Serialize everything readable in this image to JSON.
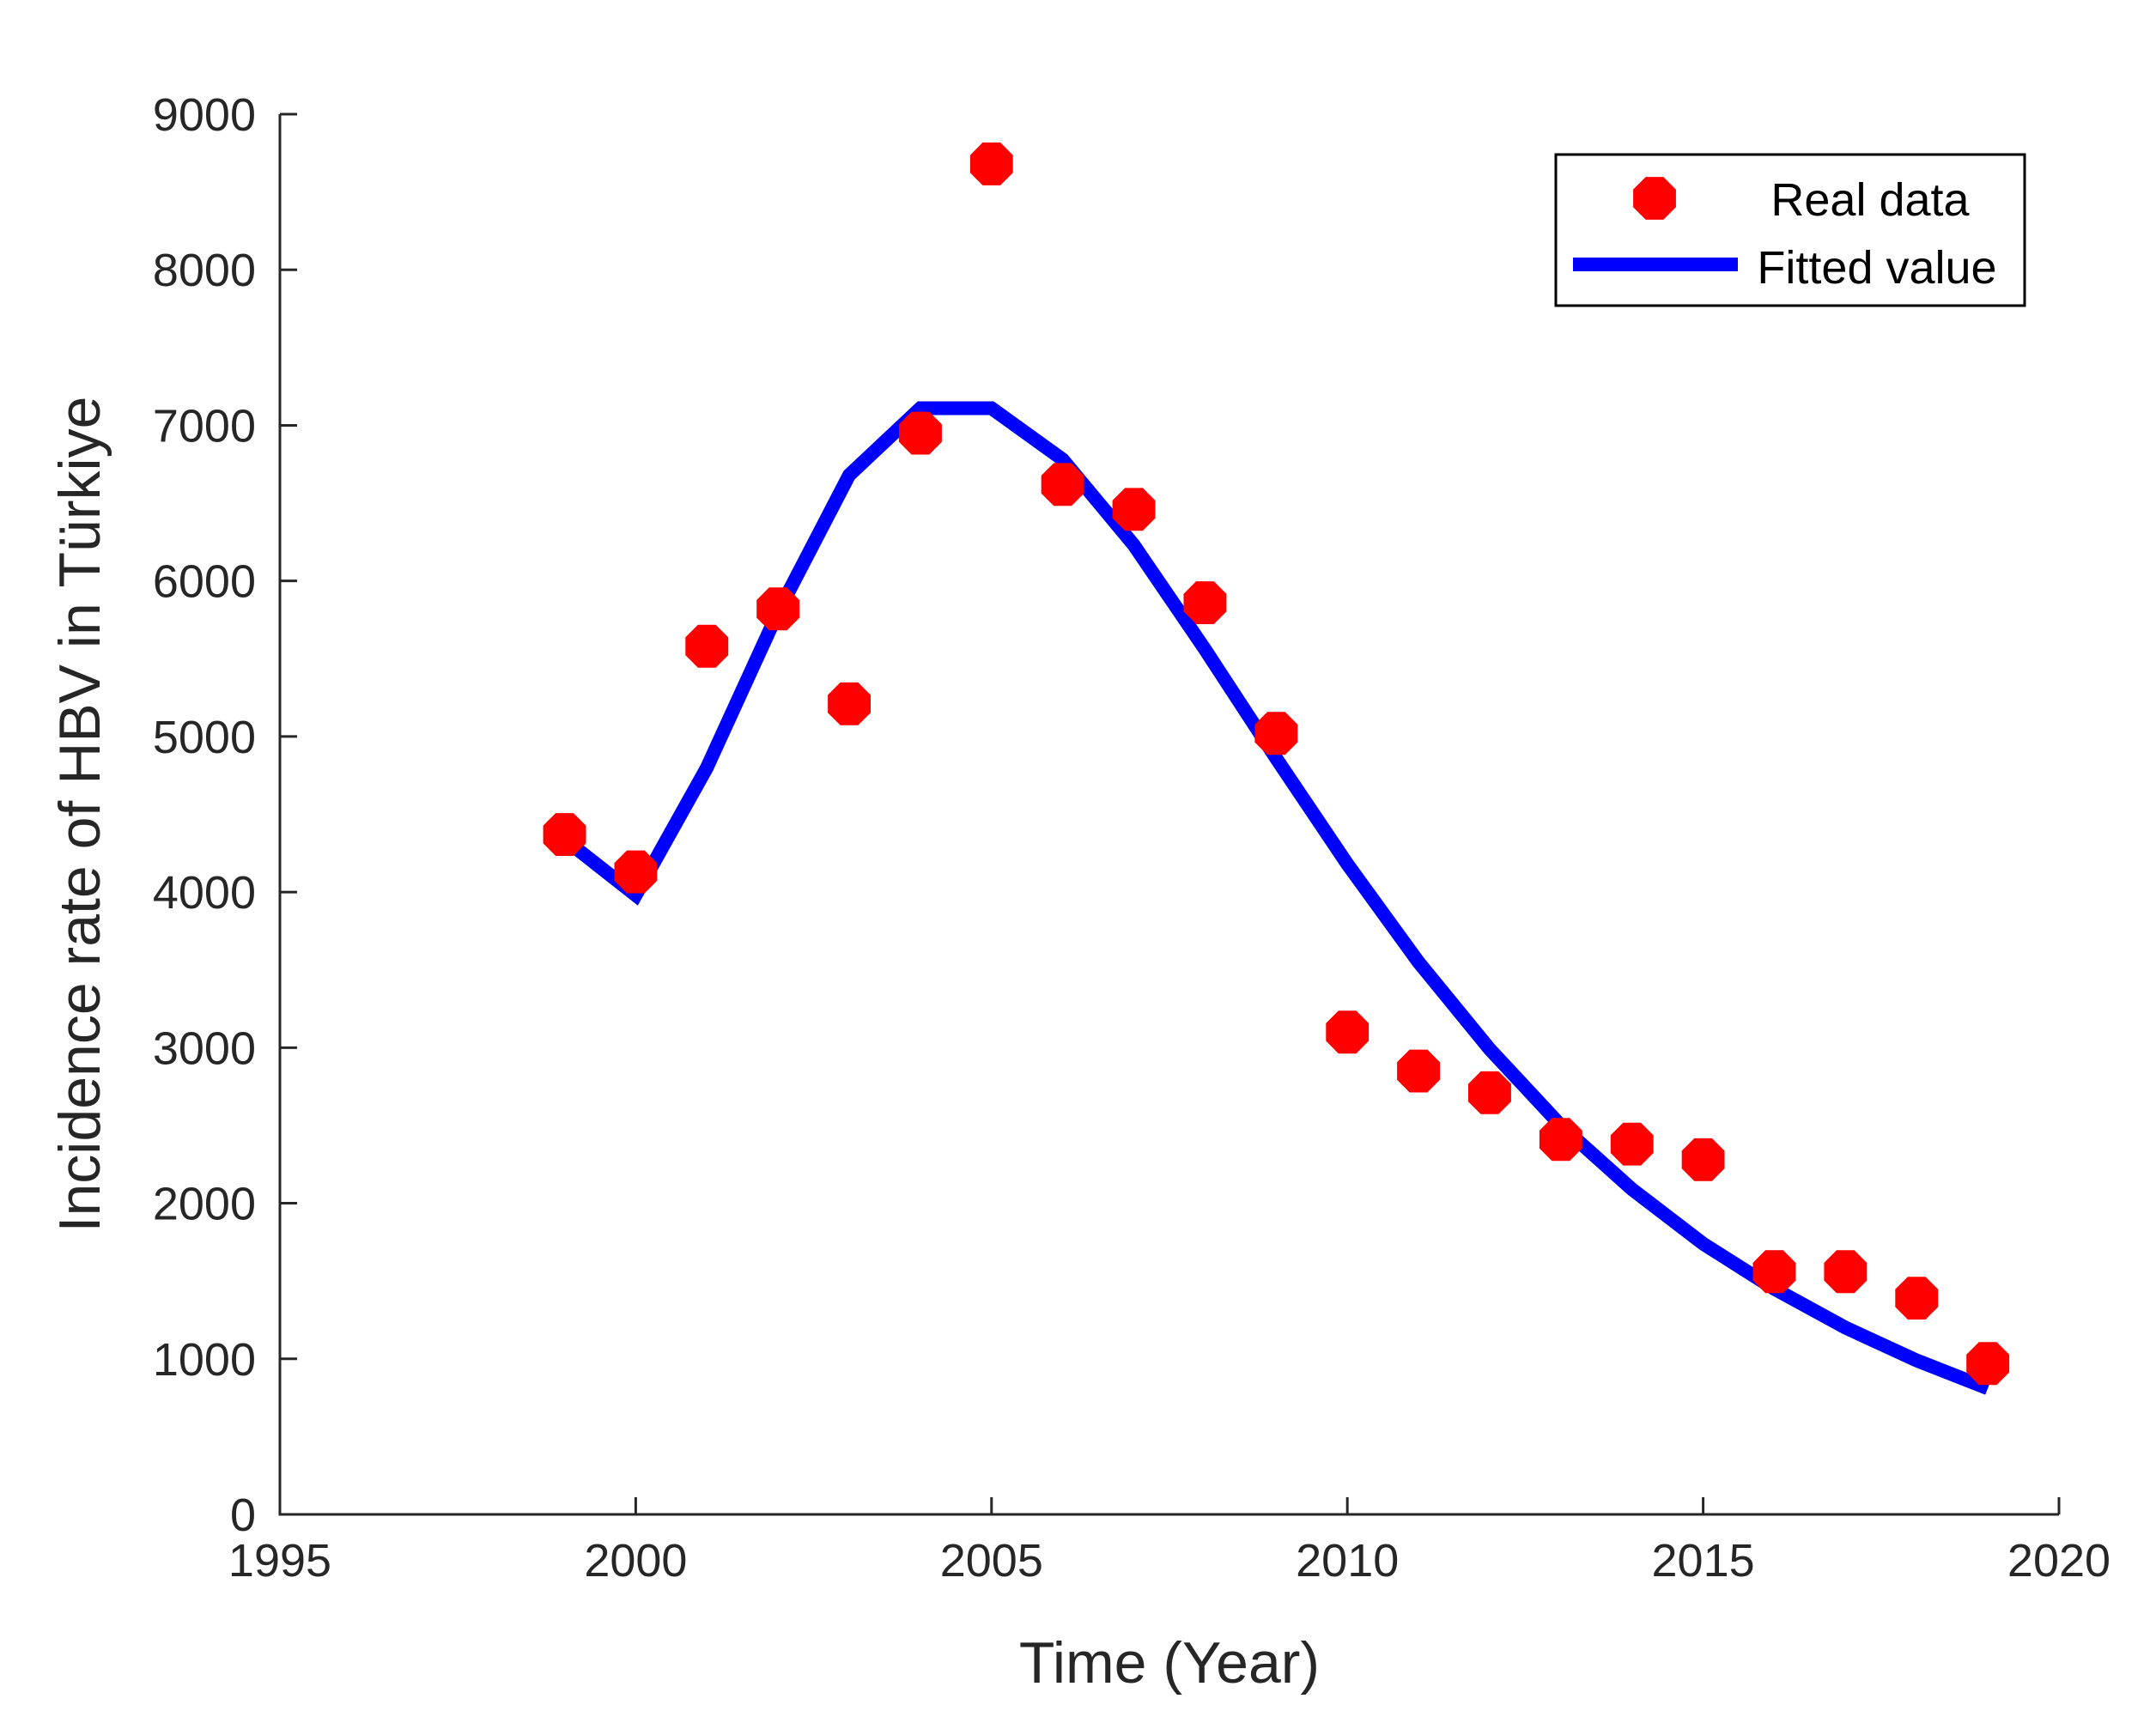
{
  "chart_data": {
    "type": "scatter",
    "title": "",
    "xlabel": "Time (Year)",
    "ylabel": "Incidence rate of HBV in Türkiye",
    "xlim": [
      1995,
      2020
    ],
    "ylim": [
      0,
      9000
    ],
    "xticks": [
      1995,
      2000,
      2005,
      2010,
      2015,
      2020
    ],
    "yticks": [
      0,
      1000,
      2000,
      3000,
      4000,
      5000,
      6000,
      7000,
      8000,
      9000
    ],
    "xtick_labels": [
      "1995",
      "2000",
      "2005",
      "2010",
      "2015",
      "2020"
    ],
    "ytick_labels": [
      "0",
      "1000",
      "2000",
      "3000",
      "4000",
      "5000",
      "6000",
      "7000",
      "8000",
      "9000"
    ],
    "grid": false,
    "legend_position": "top-right",
    "series": [
      {
        "name": "Real data",
        "kind": "markers",
        "color": "#ff0000",
        "x": [
          1999,
          2000,
          2001,
          2002,
          2003,
          2004,
          2005,
          2006,
          2007,
          2008,
          2009,
          2010,
          2011,
          2012,
          2013,
          2014,
          2015,
          2016,
          2017,
          2018,
          2019
        ],
        "y": [
          4370,
          4130,
          5580,
          5820,
          5210,
          6950,
          8680,
          6620,
          6460,
          5860,
          5020,
          3100,
          2850,
          2710,
          2410,
          2380,
          2280,
          1560,
          1560,
          1390,
          970
        ]
      },
      {
        "name": "Fitted value",
        "kind": "line",
        "color": "#0000ff",
        "x": [
          1999,
          2000,
          2001,
          2002,
          2003,
          2004,
          2005,
          2006,
          2007,
          2008,
          2009,
          2010,
          2011,
          2012,
          2013,
          2014,
          2015,
          2016,
          2017,
          2018,
          2019
        ],
        "y": [
          4340,
          3980,
          4800,
          5800,
          6680,
          7110,
          7110,
          6780,
          6230,
          5560,
          4860,
          4180,
          3550,
          2990,
          2500,
          2090,
          1740,
          1450,
          1200,
          990,
          810
        ]
      }
    ]
  }
}
